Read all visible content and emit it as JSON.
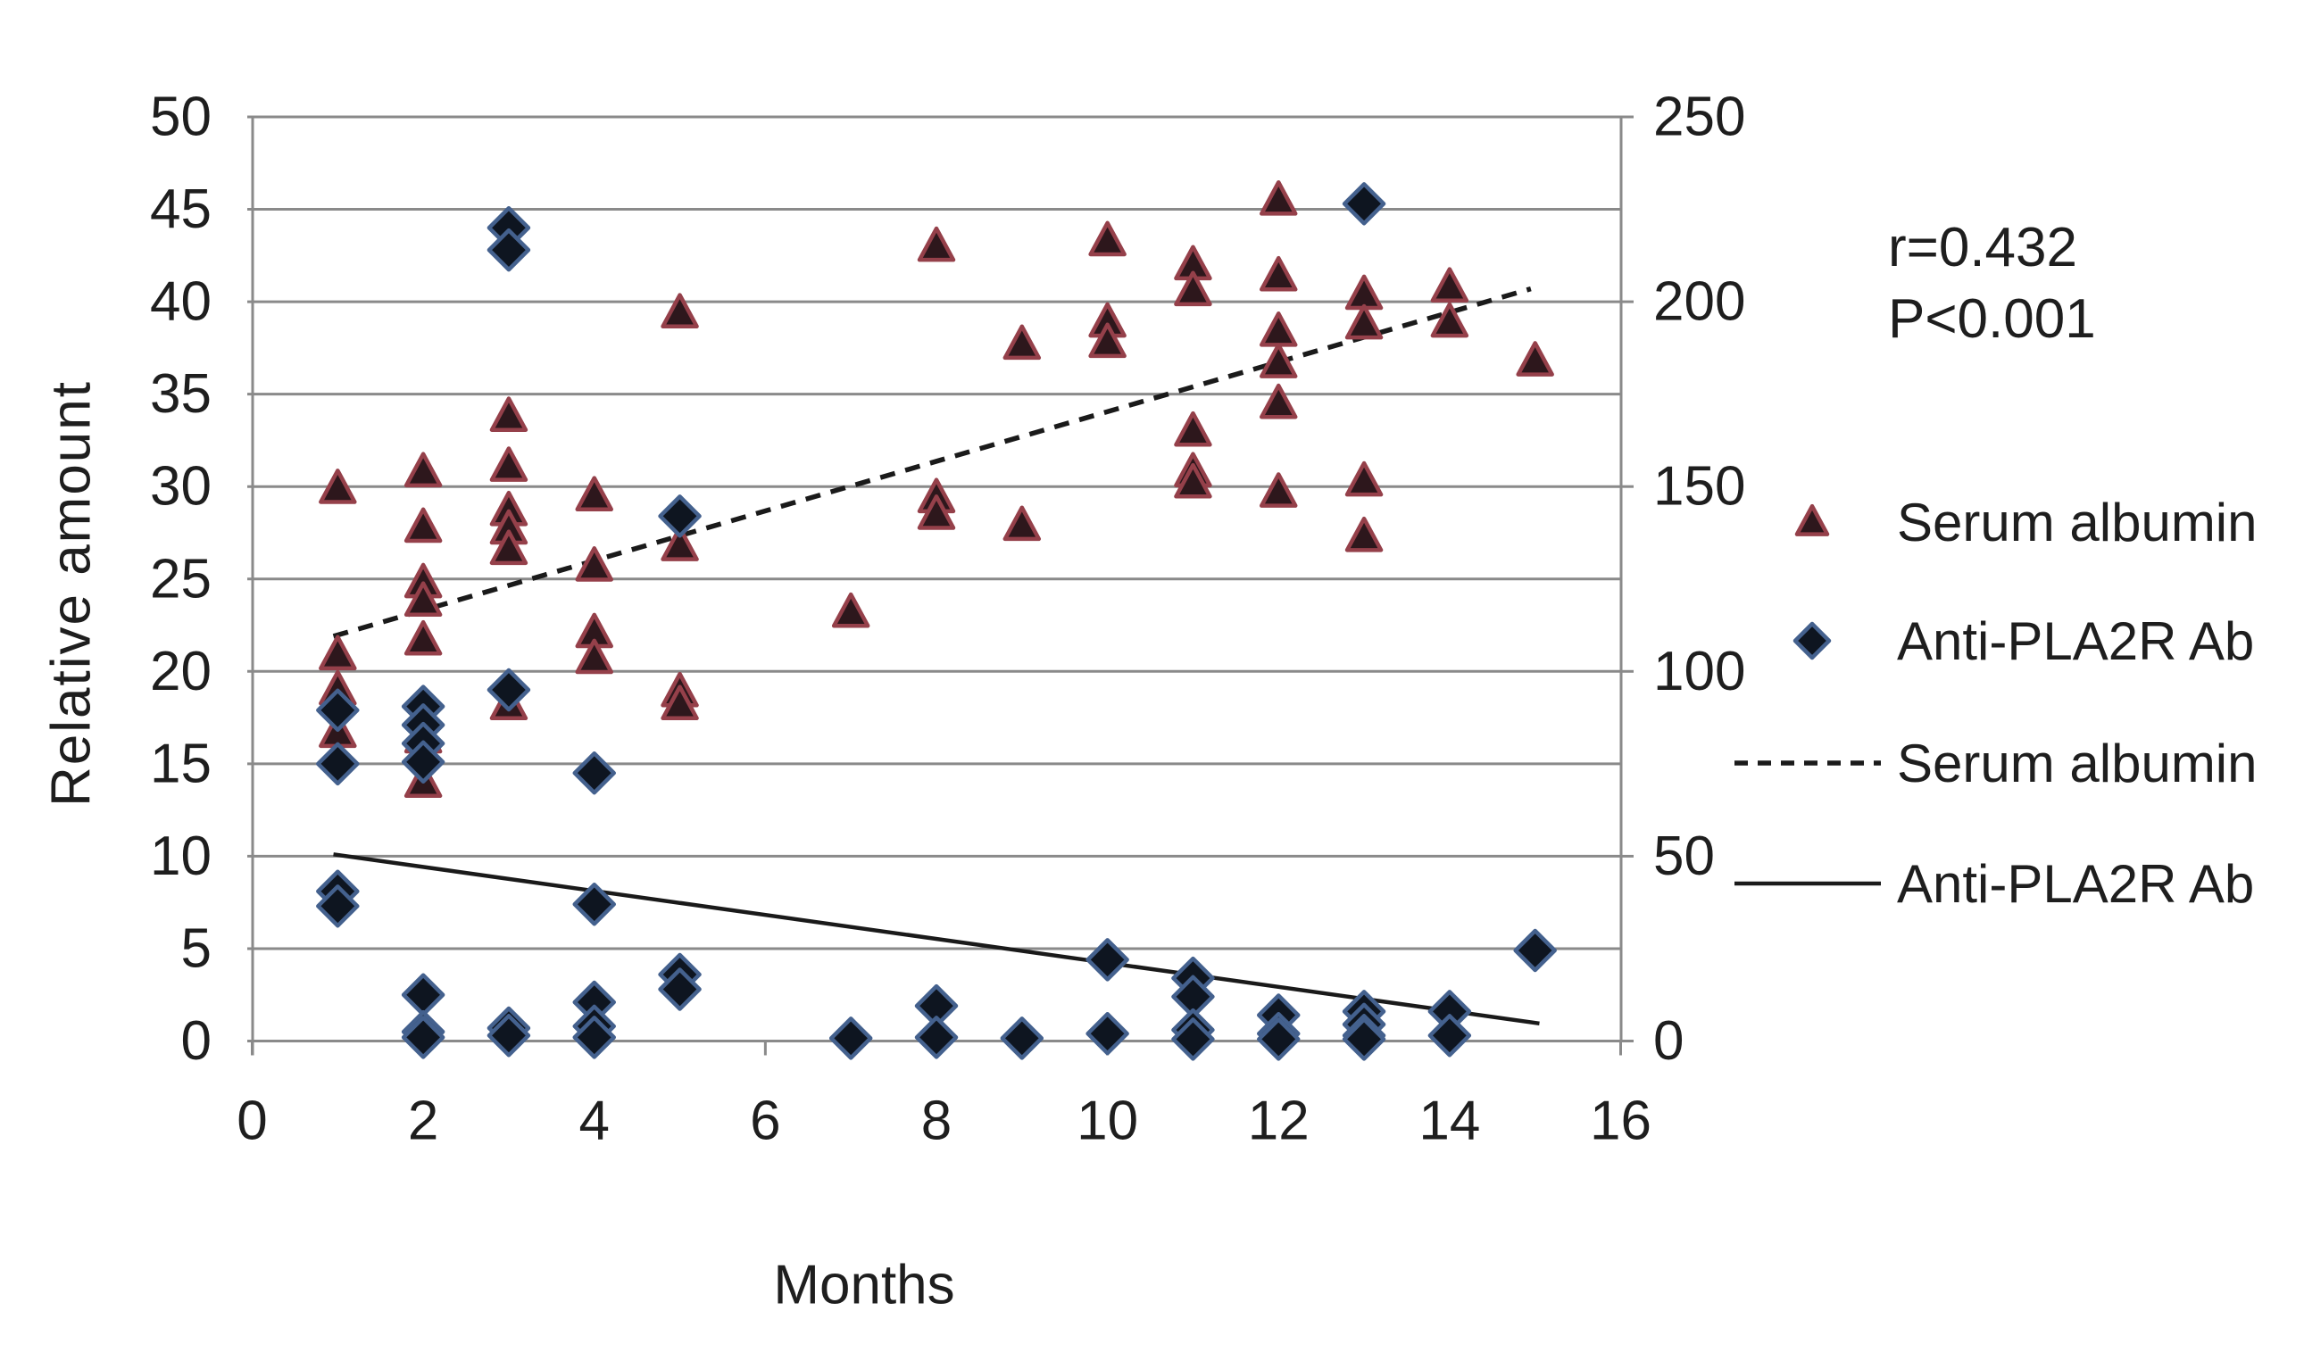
{
  "colors": {
    "background": "#ffffff",
    "grid": "#8a8a8a",
    "axis": "#8a8a8a",
    "text": "#1e1e1e",
    "triangle_fill": "#2d171c",
    "triangle_stroke": "#95404a",
    "diamond_fill": "#0e1520",
    "diamond_stroke": "#44618e",
    "trendline": "#1a1a1a"
  },
  "annotation": {
    "line1": "r=0.432",
    "line2": "P<0.001"
  },
  "legend": {
    "items": [
      {
        "marker": "triangle",
        "label": "Serum albumin"
      },
      {
        "marker": "diamond",
        "label": "Anti-PLA2R Ab"
      },
      {
        "marker": "dashed-line",
        "label": "Serum albumin"
      },
      {
        "marker": "solid-line",
        "label": "Anti-PLA2R Ab"
      }
    ]
  },
  "chart_data": {
    "type": "scatter",
    "title": "",
    "xlabel": "Months",
    "ylabel": "Relative amount",
    "grid": "horizontal-only",
    "legend_position": "right",
    "x_axis": {
      "min": 0,
      "max": 16,
      "ticks": [
        0,
        2,
        4,
        6,
        8,
        10,
        12,
        14,
        16
      ]
    },
    "y_axis_left": {
      "label": "Relative amount",
      "min": 0,
      "max": 50,
      "ticks": [
        0,
        5,
        10,
        15,
        20,
        25,
        30,
        35,
        40,
        45,
        50
      ]
    },
    "y_axis_right": {
      "min": 0,
      "max": 250,
      "ticks": [
        0,
        50,
        100,
        150,
        200,
        250
      ]
    },
    "series": [
      {
        "name": "Serum albumin",
        "marker": "triangle",
        "axis": "left",
        "points": [
          [
            1,
            29.9
          ],
          [
            1,
            20.9
          ],
          [
            1,
            19.0
          ],
          [
            1,
            16.7
          ],
          [
            2,
            30.8
          ],
          [
            2,
            27.8
          ],
          [
            2,
            24.8
          ],
          [
            2,
            23.8
          ],
          [
            2,
            21.7
          ],
          [
            2,
            16.4
          ],
          [
            2,
            14.0
          ],
          [
            3,
            33.8
          ],
          [
            3,
            31.1
          ],
          [
            3,
            28.7
          ],
          [
            3,
            27.7
          ],
          [
            3,
            26.6
          ],
          [
            3,
            18.2
          ],
          [
            4,
            29.5
          ],
          [
            4,
            25.7
          ],
          [
            4,
            22.1
          ],
          [
            4,
            20.7
          ],
          [
            5,
            39.4
          ],
          [
            5,
            26.8
          ],
          [
            5,
            18.9
          ],
          [
            5,
            18.2
          ],
          [
            7,
            23.2
          ],
          [
            8,
            43.0
          ],
          [
            8,
            29.4
          ],
          [
            8,
            28.5
          ],
          [
            9,
            37.7
          ],
          [
            9,
            27.9
          ],
          [
            10,
            43.3
          ],
          [
            10,
            38.9
          ],
          [
            10,
            37.8
          ],
          [
            11,
            42.0
          ],
          [
            11,
            40.6
          ],
          [
            11,
            33.0
          ],
          [
            11,
            30.8
          ],
          [
            11,
            30.2
          ],
          [
            12,
            45.5
          ],
          [
            12,
            41.4
          ],
          [
            12,
            38.4
          ],
          [
            12,
            36.7
          ],
          [
            12,
            34.5
          ],
          [
            12,
            29.7
          ],
          [
            13,
            40.4
          ],
          [
            13,
            38.8
          ],
          [
            13,
            30.3
          ],
          [
            13,
            27.3
          ],
          [
            14,
            40.8
          ],
          [
            14,
            38.9
          ],
          [
            15,
            36.8
          ]
        ]
      },
      {
        "name": "Anti-PLA2R Ab",
        "marker": "diamond",
        "axis": "right",
        "points": [
          [
            1,
            17.9
          ],
          [
            1,
            15.0
          ],
          [
            1,
            8.1
          ],
          [
            1,
            7.3
          ],
          [
            2,
            18.1
          ],
          [
            2,
            17.1
          ],
          [
            2,
            16.1
          ],
          [
            2,
            15.1
          ],
          [
            2,
            2.5
          ],
          [
            2,
            0.5
          ],
          [
            2,
            0.2
          ],
          [
            3,
            44.0
          ],
          [
            3,
            42.8
          ],
          [
            3,
            19.0
          ],
          [
            3,
            0.7
          ],
          [
            3,
            0.3
          ],
          [
            4,
            14.5
          ],
          [
            4,
            7.4
          ],
          [
            4,
            2.1
          ],
          [
            4,
            0.8
          ],
          [
            4,
            0.2
          ],
          [
            5,
            28.4
          ],
          [
            5,
            3.6
          ],
          [
            5,
            2.8
          ],
          [
            7,
            0.15
          ],
          [
            8,
            1.9
          ],
          [
            8,
            0.2
          ],
          [
            9,
            0.15
          ],
          [
            10,
            4.4
          ],
          [
            10,
            0.4
          ],
          [
            11,
            3.4
          ],
          [
            11,
            2.4
          ],
          [
            11,
            0.6
          ],
          [
            11,
            0.1
          ],
          [
            12,
            1.4
          ],
          [
            12,
            0.4
          ],
          [
            12,
            0.1
          ],
          [
            13,
            45.3
          ],
          [
            13,
            1.6
          ],
          [
            13,
            0.9
          ],
          [
            13,
            0.3
          ],
          [
            13,
            0.1
          ],
          [
            14,
            1.6
          ],
          [
            14,
            0.3
          ],
          [
            15,
            4.9
          ]
        ]
      }
    ],
    "trendlines": [
      {
        "name": "Serum albumin",
        "style": "dashed",
        "from": [
          0.95,
          21.9
        ],
        "to": [
          14.95,
          40.7
        ]
      },
      {
        "name": "Anti-PLA2R Ab",
        "style": "solid",
        "from": [
          0.95,
          10.1
        ],
        "to": [
          15.05,
          0.95
        ]
      }
    ]
  }
}
